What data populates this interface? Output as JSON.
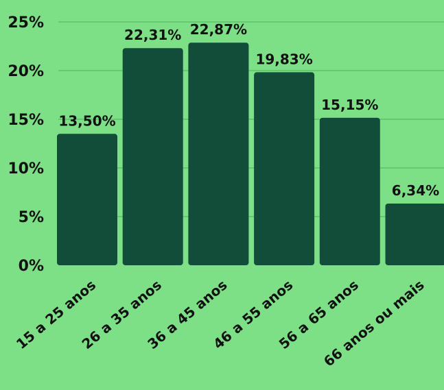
{
  "chart_data": {
    "type": "bar",
    "categories": [
      "15 a 25 anos",
      "26 a 35 anos",
      "36 a 45 anos",
      "46 a 55 anos",
      "56 a 65 anos",
      "66 anos ou mais"
    ],
    "values": [
      13.5,
      22.31,
      22.87,
      19.83,
      15.15,
      6.34
    ],
    "value_labels": [
      "13,50%",
      "22,31%",
      "22,87%",
      "19,83%",
      "15,15%",
      "6,34%"
    ],
    "ylim": [
      0,
      25
    ],
    "yticks": [
      0,
      5,
      10,
      15,
      20,
      25
    ],
    "ytick_labels": [
      "0%",
      "5%",
      "10%",
      "15%",
      "20%",
      "25%"
    ],
    "grid": true,
    "colors": {
      "background": "#7ddf86",
      "bar": "#124d3a",
      "grid": "#4cb35a",
      "text": "#111111"
    }
  }
}
